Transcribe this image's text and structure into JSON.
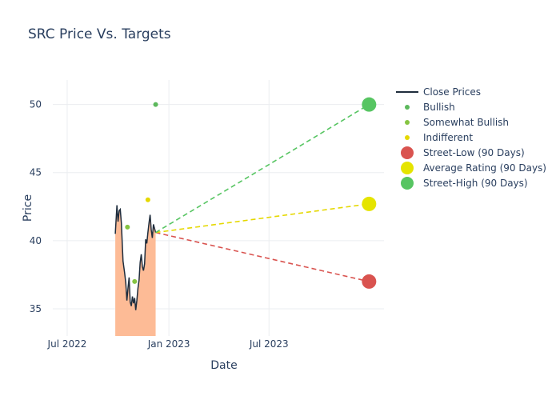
{
  "chart_data": {
    "type": "line",
    "title": "SRC Price Vs. Targets",
    "xlabel": "Date",
    "ylabel": "Price",
    "x_range": [
      "2022-06-05",
      "2024-01-25"
    ],
    "ylim": [
      33,
      51.8
    ],
    "x_ticks": [
      {
        "date": "2022-07-01",
        "label": "Jul 2022"
      },
      {
        "date": "2023-01-01",
        "label": "Jan 2023"
      },
      {
        "date": "2023-07-01",
        "label": "Jul 2023"
      }
    ],
    "y_ticks": [
      35,
      40,
      45,
      50
    ],
    "grid": true,
    "legend_position": "right",
    "series": [
      {
        "name": "Close Prices",
        "color": "#1f2d3d",
        "fill_color": "#fdbb96",
        "points": [
          [
            "2022-09-26",
            40.5
          ],
          [
            "2022-09-27",
            41.2
          ],
          [
            "2022-09-29",
            42.6
          ],
          [
            "2022-10-01",
            41.4
          ],
          [
            "2022-10-03",
            42.2
          ],
          [
            "2022-10-05",
            42.3
          ],
          [
            "2022-10-07",
            41.3
          ],
          [
            "2022-10-10",
            38.5
          ],
          [
            "2022-10-13",
            37.6
          ],
          [
            "2022-10-15",
            36.9
          ],
          [
            "2022-10-17",
            35.6
          ],
          [
            "2022-10-19",
            36.5
          ],
          [
            "2022-10-21",
            37.3
          ],
          [
            "2022-10-23",
            35.5
          ],
          [
            "2022-10-25",
            35.2
          ],
          [
            "2022-10-27",
            35.9
          ],
          [
            "2022-10-29",
            35.4
          ],
          [
            "2022-10-31",
            35.8
          ],
          [
            "2022-11-02",
            34.9
          ],
          [
            "2022-11-04",
            35.6
          ],
          [
            "2022-11-06",
            36.5
          ],
          [
            "2022-11-08",
            37.1
          ],
          [
            "2022-11-10",
            38.4
          ],
          [
            "2022-11-12",
            39.0
          ],
          [
            "2022-11-14",
            38.1
          ],
          [
            "2022-11-16",
            37.8
          ],
          [
            "2022-11-18",
            38.3
          ],
          [
            "2022-11-20",
            40.1
          ],
          [
            "2022-11-22",
            39.8
          ],
          [
            "2022-11-24",
            40.6
          ],
          [
            "2022-11-26",
            41.3
          ],
          [
            "2022-11-28",
            41.9
          ],
          [
            "2022-11-30",
            40.8
          ],
          [
            "2022-12-02",
            40.2
          ],
          [
            "2022-12-04",
            41.2
          ],
          [
            "2022-12-06",
            40.9
          ],
          [
            "2022-12-08",
            40.6
          ]
        ]
      },
      {
        "name": "Bullish",
        "color": "#5cb85c",
        "points": [
          [
            "2022-12-08",
            50
          ]
        ]
      },
      {
        "name": "Somewhat Bullish",
        "color": "#85c442",
        "points": [
          [
            "2022-10-18",
            41
          ],
          [
            "2022-10-31",
            37
          ]
        ]
      },
      {
        "name": "Indifferent",
        "color": "#e5d800",
        "points": [
          [
            "2022-11-24",
            43
          ]
        ]
      },
      {
        "name": "Street-Low (90 Days)",
        "color": "#d9534f",
        "points": [
          [
            "2023-12-29",
            37
          ]
        ]
      },
      {
        "name": "Average Rating (90 Days)",
        "color": "#e5e400",
        "points": [
          [
            "2023-12-29",
            42.7
          ]
        ]
      },
      {
        "name": "Street-High (90 Days)",
        "color": "#57c562",
        "points": [
          [
            "2023-12-29",
            50
          ]
        ]
      }
    ],
    "projections": [
      {
        "from": [
          "2022-12-08",
          40.6
        ],
        "to": [
          "2023-12-29",
          37
        ],
        "color": "#d9534f"
      },
      {
        "from": [
          "2022-12-08",
          40.6
        ],
        "to": [
          "2023-12-29",
          42.7
        ],
        "color": "#e5d800"
      },
      {
        "from": [
          "2022-12-08",
          40.6
        ],
        "to": [
          "2023-12-29",
          50
        ],
        "color": "#57c562"
      }
    ]
  }
}
